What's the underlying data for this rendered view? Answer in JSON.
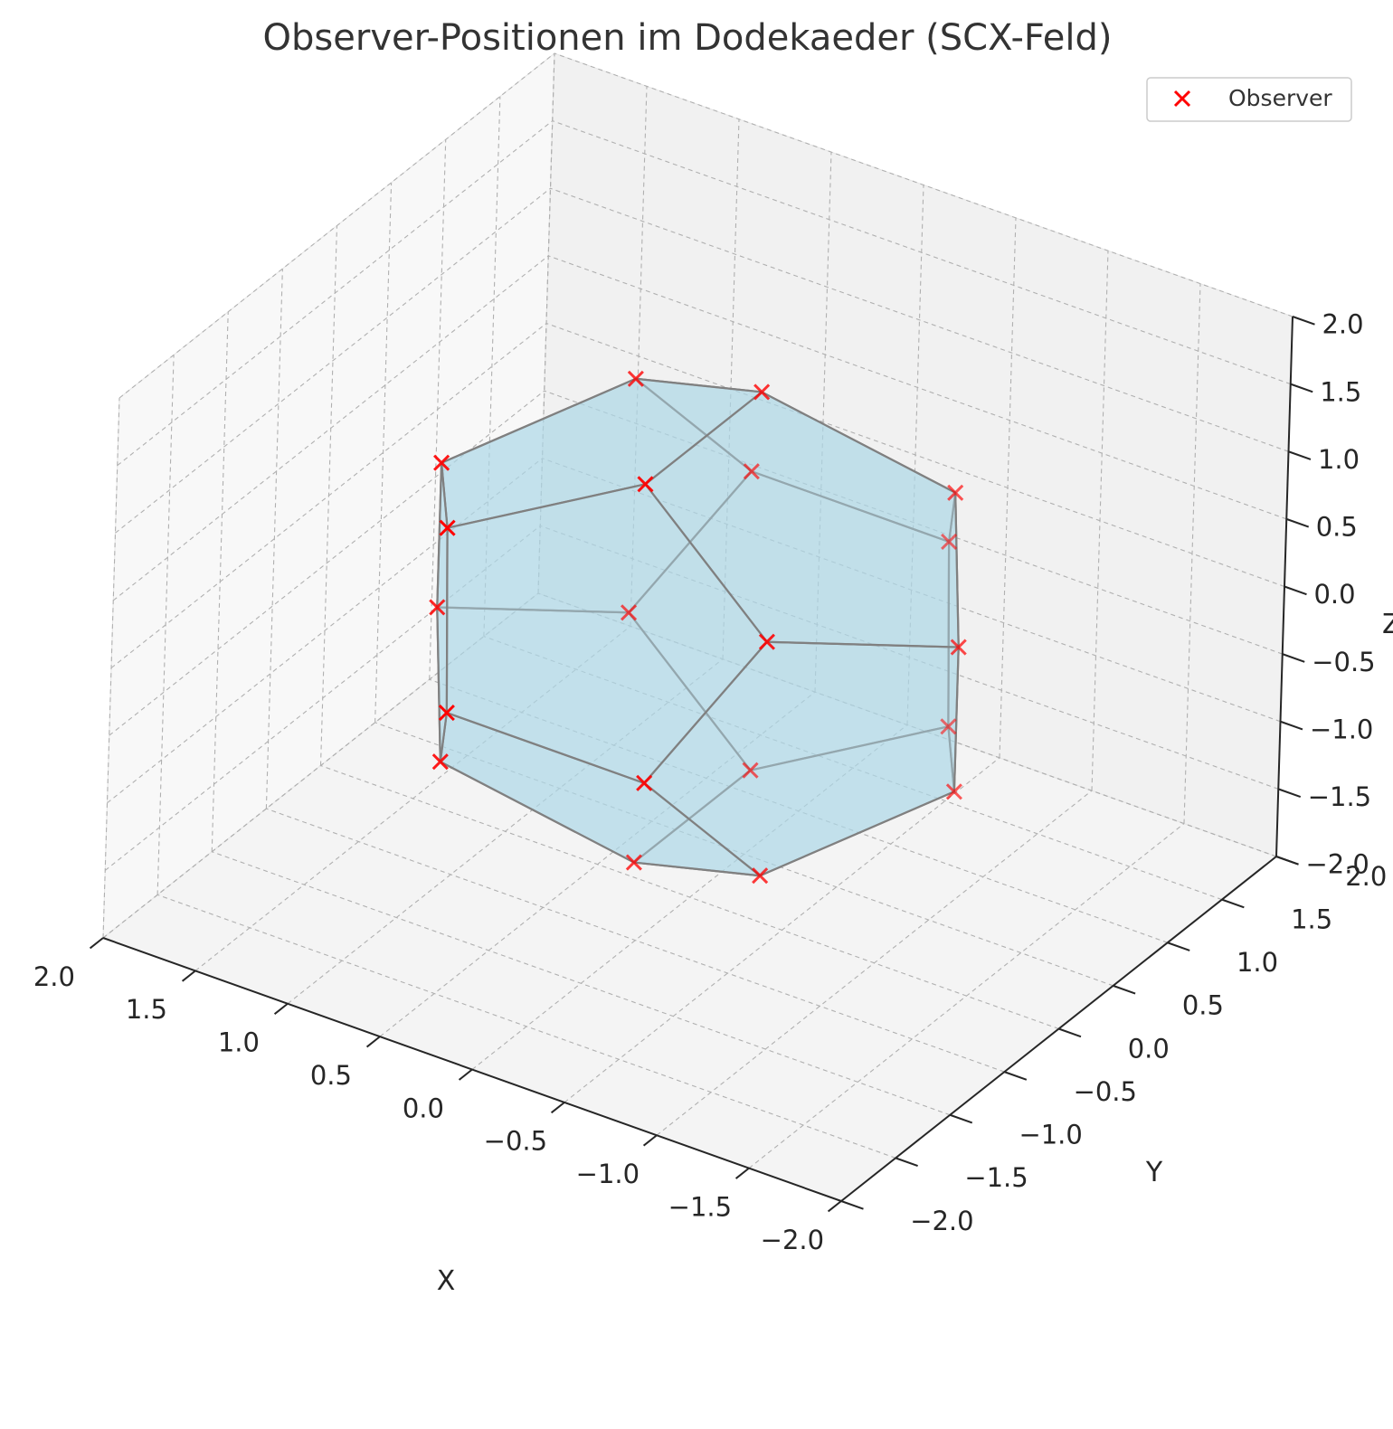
{
  "chart_data": {
    "type": "scatter3d",
    "title": "Observer-Positionen im Dodekaeder (SCX-Feld)",
    "xlabel": "X",
    "ylabel": "Y",
    "zlabel": "Z",
    "xlim": [
      -2.0,
      2.0
    ],
    "ylim": [
      -2.0,
      2.0
    ],
    "zlim": [
      -2.0,
      2.0
    ],
    "ticks": [
      -2.0,
      -1.5,
      -1.0,
      -0.5,
      0.0,
      0.5,
      1.0,
      1.5,
      2.0
    ],
    "tick_labels": [
      "−2.0",
      "−1.5",
      "−1.0",
      "−0.5",
      "0.0",
      "0.5",
      "1.0",
      "1.5",
      "2.0"
    ],
    "grid": true,
    "legend": {
      "position": "top-right",
      "entries": [
        "Observer"
      ]
    },
    "series": [
      {
        "name": "Observer",
        "marker": "x",
        "color": "#ff0000",
        "points": [
          [
            -1.401,
            0.0,
            0.535
          ],
          [
            -0.866,
            0.866,
            0.866
          ],
          [
            -0.866,
            -0.866,
            0.866
          ],
          [
            1.401,
            0.0,
            -0.535
          ],
          [
            0.866,
            0.866,
            -0.866
          ],
          [
            0.866,
            -0.866,
            -0.866
          ],
          [
            0.0,
            0.535,
            1.401
          ],
          [
            0.0,
            -0.535,
            1.401
          ],
          [
            0.0,
            0.535,
            -1.401
          ],
          [
            0.0,
            -0.535,
            -1.401
          ],
          [
            0.535,
            1.401,
            0.0
          ],
          [
            -0.535,
            1.401,
            0.0
          ],
          [
            0.535,
            -1.401,
            0.0
          ],
          [
            -0.535,
            -1.401,
            0.0
          ],
          [
            1.401,
            0.0,
            0.535
          ],
          [
            0.866,
            0.866,
            0.866
          ],
          [
            0.866,
            -0.866,
            0.866
          ],
          [
            -1.401,
            0.0,
            -0.535
          ],
          [
            -0.866,
            0.866,
            -0.866
          ],
          [
            -0.866,
            -0.866,
            -0.866
          ]
        ]
      }
    ],
    "faces": [
      [
        0,
        1,
        6,
        7,
        2
      ],
      [
        14,
        15,
        6,
        7,
        16
      ],
      [
        3,
        4,
        8,
        9,
        5
      ],
      [
        17,
        18,
        8,
        9,
        19
      ],
      [
        14,
        15,
        10,
        4,
        3
      ],
      [
        14,
        16,
        12,
        5,
        3
      ],
      [
        0,
        1,
        11,
        18,
        17
      ],
      [
        0,
        2,
        13,
        19,
        17
      ],
      [
        1,
        11,
        10,
        15,
        6
      ],
      [
        18,
        11,
        10,
        4,
        8
      ],
      [
        2,
        13,
        12,
        16,
        7
      ],
      [
        19,
        13,
        12,
        5,
        9
      ]
    ],
    "face_color": "#add8e6",
    "edge_color": "#808080",
    "pane_colors": {
      "left": "#f8f8f8",
      "right": "#f1f1f1",
      "floor": "#f4f4f4"
    },
    "grid_color": "#b0b0b0"
  }
}
